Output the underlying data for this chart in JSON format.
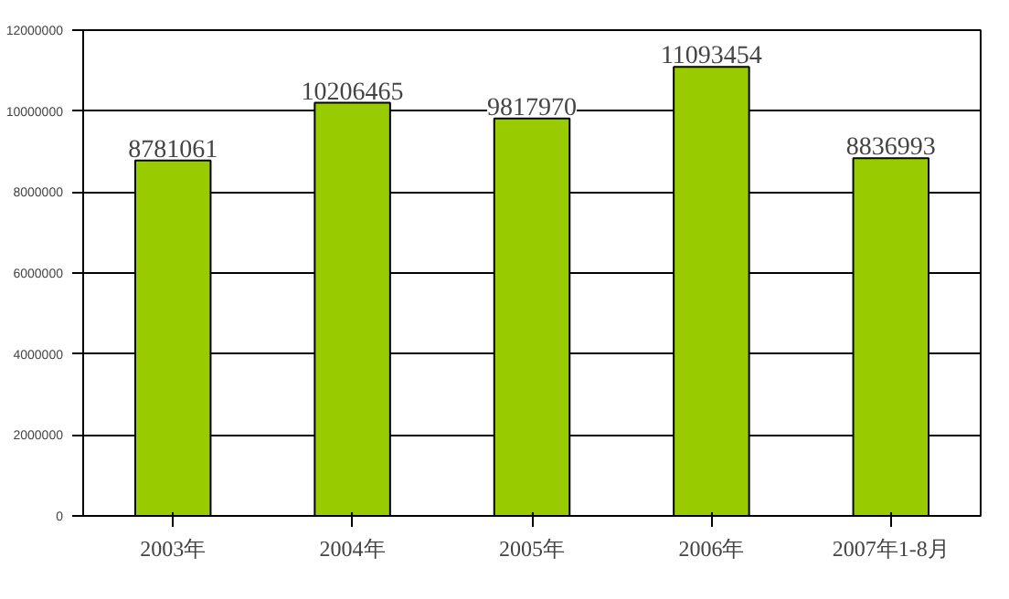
{
  "chart_data": {
    "type": "bar",
    "categories": [
      "2003年",
      "2004年",
      "2005年",
      "2006年",
      "2007年1-8月"
    ],
    "values": [
      8781061,
      10206465,
      9817970,
      11093454,
      8836993
    ],
    "color": "#99cc00",
    "ylim": [
      0,
      12000000
    ],
    "yticks": [
      0,
      2000000,
      4000000,
      6000000,
      8000000,
      10000000,
      12000000
    ],
    "grid": "y",
    "data_labels": true
  }
}
